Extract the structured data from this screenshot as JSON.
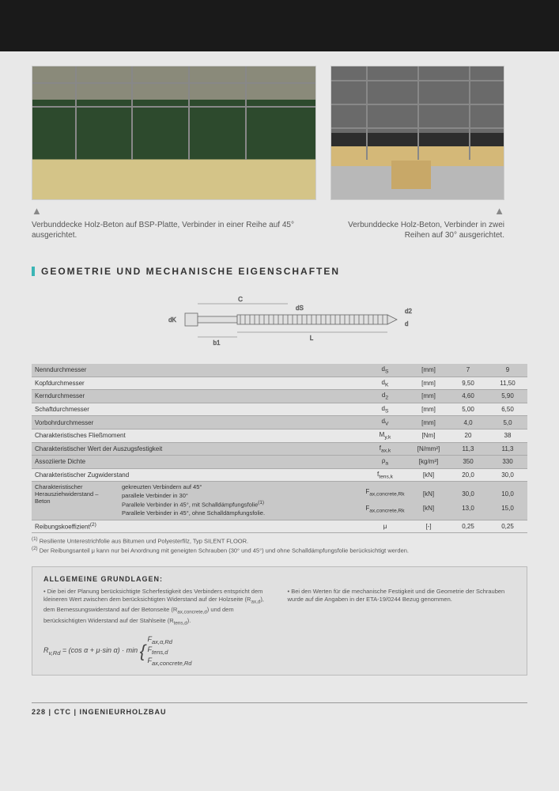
{
  "captions": {
    "left": "Verbunddecke Holz-Beton auf BSP-Platte, Verbinder in einer Reihe auf 45° ausgerichtet.",
    "right": "Verbunddecke Holz-Beton, Verbinder in zwei Reihen auf 30° ausgerichtet."
  },
  "section_title": "GEOMETRIE UND MECHANISCHE EIGENSCHAFTEN",
  "diagram_labels": {
    "dk": "dK",
    "c": "C",
    "b1": "b1",
    "ds": "dS",
    "l": "L",
    "d2": "d2",
    "d": "d"
  },
  "table": {
    "rows": [
      {
        "dark": true,
        "label": "Nenndurchmesser",
        "sym": "d<sub>S</sub>",
        "unit": "[mm]",
        "v1": "7",
        "v2": "9"
      },
      {
        "dark": false,
        "label": "Kopfdurchmesser",
        "sym": "d<sub>K</sub>",
        "unit": "[mm]",
        "v1": "9,50",
        "v2": "11,50"
      },
      {
        "dark": true,
        "label": "Kerndurchmesser",
        "sym": "d<sub>2</sub>",
        "unit": "[mm]",
        "v1": "4,60",
        "v2": "5,90"
      },
      {
        "dark": false,
        "label": "Schaftdurchmesser",
        "sym": "d<sub>S</sub>",
        "unit": "[mm]",
        "v1": "5,00",
        "v2": "6,50"
      },
      {
        "dark": true,
        "label": "Vorbohrdurchmesser",
        "sym": "d<sub>V</sub>",
        "unit": "[mm]",
        "v1": "4,0",
        "v2": "5,0"
      },
      {
        "dark": false,
        "label": "Charakteristisches Fließmoment",
        "sym": "M<sub>y,k</sub>",
        "unit": "[Nm]",
        "v1": "20",
        "v2": "38"
      },
      {
        "dark": true,
        "label": "Charakteristischer Wert der Auszugsfestigkeit",
        "sym": "f<sub>ax,k</sub>",
        "unit": "[N/mm²]",
        "v1": "11,3",
        "v2": "11,3"
      },
      {
        "dark": true,
        "label": "Assoziierte Dichte",
        "sym": "ρ<sub>a</sub>",
        "unit": "[kg/m³]",
        "v1": "350",
        "v2": "330"
      },
      {
        "dark": false,
        "label": "Charakteristischer Zugwiderstand",
        "sym": "f<sub>tens,k</sub>",
        "unit": "[kN]",
        "v1": "20,0",
        "v2": "30,0"
      }
    ],
    "pullout": {
      "label": "Charakteristischer Herausziehwiderstand – Beton",
      "sublines": [
        "gekreuzten Verbindern auf 45°",
        "parallele Verbinder in 30°",
        "Parallele Verbinder in 45°, mit Schalldämpfungsfolie<sup>(1)</sup>",
        "Parallele Verbinder in 45°, ohne Schalldämpfungsfolie."
      ],
      "syms": [
        "F<sub>ax,concrete,Rk</sub>",
        "F<sub>ax,concrete,Rk</sub>"
      ],
      "units": [
        "[kN]",
        "[kN]"
      ],
      "vals": [
        [
          "30,0",
          "10,0"
        ],
        [
          "13,0",
          "15,0"
        ]
      ]
    },
    "friction": {
      "label": "Reibungskoeffizient<sup>(2)</sup>",
      "sym": "μ",
      "unit": "[-]",
      "v1": "0,25",
      "v2": "0,25"
    }
  },
  "footnotes": [
    "<sup>(1)</sup> Resiliente Unterestrichfolie aus Bitumen und Polyesterfilz, Typ SILENT FLOOR.",
    "<sup>(2)</sup> Der Reibungsanteil μ kann nur bei Anordnung mit geneigten Schrauben (30° und 45°) und ohne Schalldämpfungsfolie berücksichtigt werden."
  ],
  "info": {
    "title": "ALLGEMEINE GRUNDLAGEN:",
    "left": "• Die bei der Planung berücksichtigte Scherfestigkeit des Verbinders entspricht dem kleineren Wert zwischen dem berücksichtigten Widerstand auf der Holzseite (R<sub>ax,d</sub>), dem Bemessungswiderstand auf der Betonseite (R<sub>ax,concrete,d</sub>) und dem berücksichtigten Widerstand auf der Stahlseite (R<sub>tens,d</sub>).",
    "right": "• Bei den Werten für die mechanische Festigkeit und die Geometrie der Schrauben wurde auf die Angaben in der ETA-19/0244 Bezug genommen.",
    "formula_lhs": "R<sub>v,Rd</sub> = (cos α + μ·sin α) · min",
    "formula_opts": [
      "F<sub>ax,α,Rd</sub>",
      "F<sub>tens,d</sub>",
      "F<sub>ax,concrete,Rd</sub>"
    ]
  },
  "footer": "228  |  CTC  |  INGENIEURHOLZBAU"
}
